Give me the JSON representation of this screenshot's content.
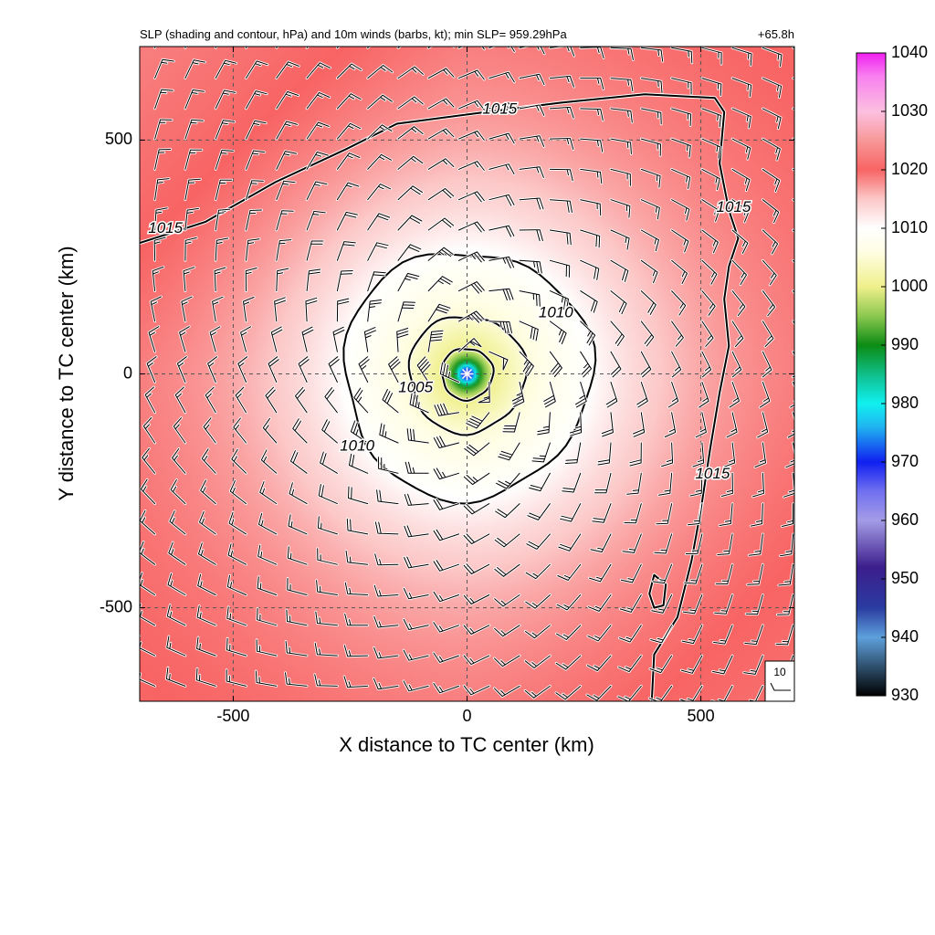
{
  "chart_data": {
    "type": "heatmap",
    "title": "SLP (shading and contour, hPa) and 10m winds (barbs, kt); min SLP= 959.29hPa",
    "time_label": "+65.8h",
    "xlabel": "X distance to TC center (km)",
    "ylabel": "Y distance to TC center (km)",
    "xlim": [
      -700,
      700
    ],
    "ylim": [
      -700,
      700
    ],
    "x_ticks": [
      -500,
      0,
      500
    ],
    "y_ticks": [
      -500,
      0,
      500
    ],
    "grid": true,
    "min_slp_hpa": 959.29,
    "colorbar": {
      "min": 930,
      "max": 1040,
      "ticks": [
        930,
        940,
        950,
        960,
        970,
        980,
        990,
        1000,
        1010,
        1020,
        1030,
        1040
      ],
      "stops": [
        {
          "v": 930,
          "color": "#000000"
        },
        {
          "v": 940,
          "color": "#5ea0dc"
        },
        {
          "v": 945,
          "color": "#2a3ca0"
        },
        {
          "v": 952,
          "color": "#3c1e8c"
        },
        {
          "v": 960,
          "color": "#a49ce6"
        },
        {
          "v": 965,
          "color": "#7070f0"
        },
        {
          "v": 970,
          "color": "#1020f0"
        },
        {
          "v": 976,
          "color": "#20b4f0"
        },
        {
          "v": 980,
          "color": "#10f0f0"
        },
        {
          "v": 984,
          "color": "#10c8a0"
        },
        {
          "v": 990,
          "color": "#0c8c14"
        },
        {
          "v": 995,
          "color": "#8cc850"
        },
        {
          "v": 1000,
          "color": "#f0f08c"
        },
        {
          "v": 1006,
          "color": "#fffee4"
        },
        {
          "v": 1010,
          "color": "#ffffff"
        },
        {
          "v": 1015,
          "color": "#fcc8c8"
        },
        {
          "v": 1020,
          "color": "#f86464"
        },
        {
          "v": 1025,
          "color": "#f89898"
        },
        {
          "v": 1030,
          "color": "#fcc0e0"
        },
        {
          "v": 1036,
          "color": "#f880f0"
        },
        {
          "v": 1040,
          "color": "#f020f0"
        }
      ]
    },
    "pressure_field": {
      "center_km": [
        0,
        0
      ],
      "ambient_hpa": 1020,
      "isobars": [
        {
          "level": 1010,
          "radius_km": 265
        },
        {
          "level": 1005,
          "radius_km": 125
        },
        {
          "level": 1000,
          "radius_km": 55
        },
        {
          "level": 990,
          "radius_km": 28
        },
        {
          "level": 980,
          "radius_km": 18
        },
        {
          "level": 970,
          "radius_km": 10
        },
        {
          "level": 959.29,
          "radius_km": 0
        }
      ]
    },
    "contours": [
      {
        "level": 1010,
        "label": "1010",
        "shape": "ring",
        "radius_km": 265
      },
      {
        "level": 1005,
        "label": "1005",
        "shape": "ring",
        "radius_km": 125
      },
      {
        "level": 1000,
        "label": "",
        "shape": "ring",
        "radius_km": 55
      },
      {
        "level": 1015,
        "label": "1015",
        "shape": "line",
        "points": [
          [
            -700,
            280
          ],
          [
            -560,
            325
          ],
          [
            -410,
            410
          ],
          [
            -260,
            480
          ],
          [
            -150,
            535
          ],
          [
            40,
            560
          ],
          [
            200,
            580
          ],
          [
            380,
            598
          ],
          [
            530,
            590
          ],
          [
            550,
            560
          ],
          [
            540,
            450
          ],
          [
            560,
            350
          ],
          [
            580,
            290
          ],
          [
            560,
            230
          ],
          [
            550,
            160
          ],
          [
            560,
            60
          ],
          [
            540,
            -40
          ],
          [
            520,
            -160
          ],
          [
            500,
            -290
          ],
          [
            480,
            -400
          ],
          [
            450,
            -520
          ],
          [
            400,
            -600
          ],
          [
            395,
            -700
          ]
        ]
      },
      {
        "level": 1015,
        "label": "",
        "shape": "loop",
        "points": [
          [
            400,
            -430
          ],
          [
            425,
            -450
          ],
          [
            420,
            -495
          ],
          [
            400,
            -500
          ],
          [
            390,
            -470
          ]
        ]
      }
    ],
    "contour_labels": [
      {
        "text": "1015",
        "x": 70,
        "y": 565
      },
      {
        "text": "1015",
        "x": -645,
        "y": 310
      },
      {
        "text": "1015",
        "x": 570,
        "y": 355
      },
      {
        "text": "1015",
        "x": 525,
        "y": -215
      },
      {
        "text": "1010",
        "x": 190,
        "y": 130
      },
      {
        "text": "1010",
        "x": -235,
        "y": -155
      },
      {
        "text": "1005",
        "x": -110,
        "y": -30
      }
    ],
    "winds": {
      "spacing_km": 65,
      "circulation": "cyclonic",
      "max_speed_kt": 60,
      "ambient_flow_kt": 13
    },
    "reference_vector": {
      "label": "10",
      "speed_kt": 10
    }
  }
}
